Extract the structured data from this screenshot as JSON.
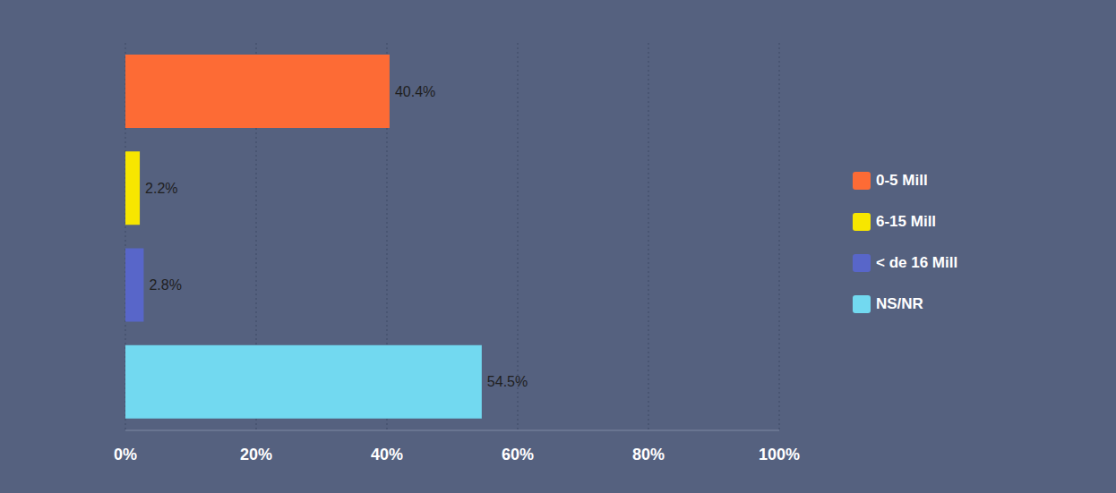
{
  "chart_data": {
    "type": "bar",
    "orientation": "horizontal",
    "categories": [
      "0-5 Mill",
      "6-15 Mill",
      "< de 16 Mill",
      "NS/NR"
    ],
    "values": [
      40.4,
      2.2,
      2.8,
      54.5
    ],
    "value_labels": [
      "40.4%",
      "2.2%",
      "2.8%",
      "54.5%"
    ],
    "colors": [
      "#fd6b35",
      "#f7e600",
      "#5866c9",
      "#72d9f0"
    ],
    "xlim": [
      0,
      100
    ],
    "xticks": [
      {
        "value": 0,
        "label": "0%"
      },
      {
        "value": 20,
        "label": "20%"
      },
      {
        "value": 40,
        "label": "40%"
      },
      {
        "value": 60,
        "label": "60%"
      },
      {
        "value": 80,
        "label": "80%"
      },
      {
        "value": 100,
        "label": "100%"
      }
    ],
    "grid": true,
    "data_labels": true,
    "legend": "right",
    "tick_labels": "x"
  }
}
